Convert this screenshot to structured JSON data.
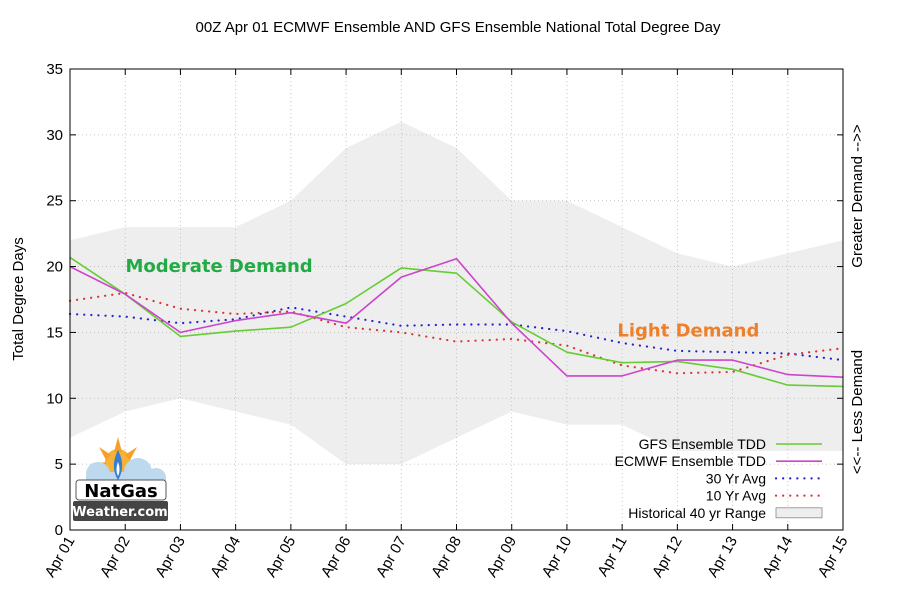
{
  "chart_data": {
    "type": "line",
    "title": "00Z Apr 01 ECMWF Ensemble AND GFS Ensemble National Total Degree Day",
    "ylabel": "Total Degree Days",
    "y2label_top": "Greater Demand -->>",
    "y2label_bottom": "<<-- Less Demand",
    "ylim": [
      0,
      35
    ],
    "yticks": [
      "0",
      "5",
      "10",
      "15",
      "20",
      "25",
      "30",
      "35"
    ],
    "categories": [
      "Apr 01",
      "Apr 02",
      "Apr 03",
      "Apr 04",
      "Apr 05",
      "Apr 06",
      "Apr 07",
      "Apr 08",
      "Apr 09",
      "Apr 10",
      "Apr 11",
      "Apr 12",
      "Apr 13",
      "Apr 14",
      "Apr 15"
    ],
    "grid": true,
    "legend_position": "bottom-right",
    "series": [
      {
        "name": "GFS Ensemble TDD",
        "style": "solid",
        "color": "#66cc33",
        "values": [
          20.7,
          17.9,
          14.7,
          15.1,
          15.4,
          17.2,
          19.9,
          19.5,
          15.8,
          13.5,
          12.7,
          12.8,
          12.2,
          11.0,
          10.9
        ]
      },
      {
        "name": "ECMWF Ensemble TDD",
        "style": "solid",
        "color": "#cc44cc",
        "values": [
          20.0,
          17.9,
          15.0,
          15.9,
          16.5,
          15.7,
          19.2,
          20.6,
          15.7,
          11.7,
          11.7,
          12.9,
          12.9,
          11.8,
          11.6
        ]
      },
      {
        "name": "30 Yr Avg",
        "style": "dotted",
        "color": "#2222cc",
        "values": [
          16.4,
          16.2,
          15.7,
          16.0,
          16.9,
          16.2,
          15.5,
          15.6,
          15.6,
          15.1,
          14.2,
          13.6,
          13.5,
          13.4,
          12.9
        ]
      },
      {
        "name": "10 Yr Avg",
        "style": "dotted",
        "color": "#dd3333",
        "values": [
          17.4,
          18.0,
          16.8,
          16.4,
          16.6,
          15.4,
          15.0,
          14.3,
          14.5,
          14.0,
          12.5,
          11.9,
          12.0,
          13.3,
          13.8
        ]
      }
    ],
    "range_band": {
      "name": "Historical 40 yr Range",
      "color": "#eeeeee",
      "low": [
        7.0,
        9.0,
        10.0,
        9.0,
        8.0,
        5.0,
        5.0,
        7.0,
        9.0,
        8.0,
        8.0,
        6.0,
        6.0,
        6.0,
        6.0
      ],
      "high": [
        22.0,
        23.0,
        23.0,
        23.0,
        25.0,
        29.0,
        31.0,
        29.0,
        25.0,
        25.0,
        23.0,
        21.0,
        20.0,
        21.0,
        22.0
      ]
    },
    "annotations": [
      {
        "text": "Moderate Demand",
        "color": "#22aa44",
        "x_index": 2.7,
        "y": 19.6
      },
      {
        "text": "Light Demand",
        "color": "#f07f2a",
        "x_index": 11.2,
        "y": 14.7
      }
    ]
  },
  "logo": {
    "line1": "NatGas",
    "line2": "Weather.com"
  }
}
